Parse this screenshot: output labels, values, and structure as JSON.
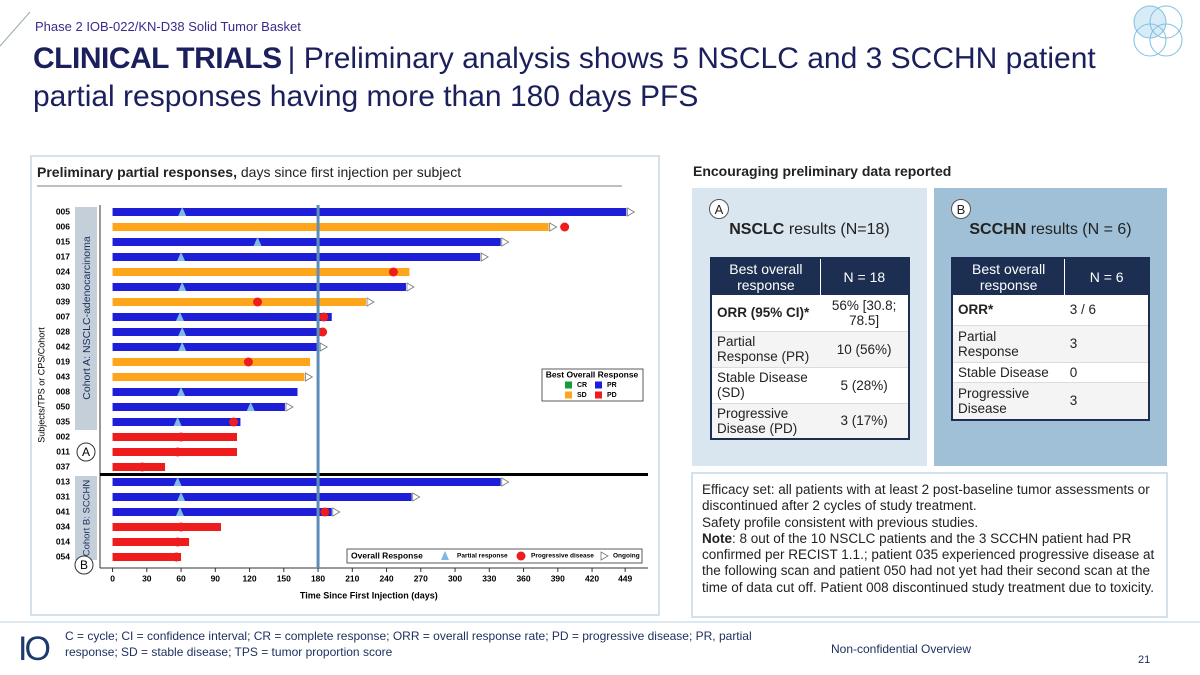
{
  "header": {
    "subtitle": "Phase 2  IOB-022/KN-D38 Solid Tumor Basket",
    "title_bold": "CLINICAL TRIALS",
    "title_rest": "| Preliminary analysis shows 5 NSCLC and 3 SCCHN patient partial responses having more than 180 days PFS"
  },
  "left_panel": {
    "heading_bold": "Preliminary partial responses,",
    "heading_rest": "days since first injection per subject"
  },
  "chart_data": {
    "type": "swimmer",
    "y_label": "Subjects/TPS or CPS/Cohort",
    "x_label": "Time Since First Injection (days)",
    "categories": [
      "005",
      "006",
      "015",
      "017",
      "024",
      "030",
      "039",
      "007",
      "028",
      "042",
      "019",
      "043",
      "008",
      "050",
      "035",
      "002",
      "011",
      "037",
      "013",
      "031",
      "041",
      "034",
      "014",
      "054"
    ],
    "values": [
      450,
      382,
      340,
      322,
      260,
      257,
      222,
      192,
      184,
      181,
      173,
      168,
      162,
      151,
      112,
      109,
      109,
      46,
      340,
      262,
      192,
      95,
      67,
      60
    ],
    "bar_colors": [
      "#1e1ed8",
      "#ffa51c",
      "#1e1ed8",
      "#1e1ed8",
      "#ffa51c",
      "#1e1ed8",
      "#ffa51c",
      "#1e1ed8",
      "#1e1ed8",
      "#1e1ed8",
      "#ffa51c",
      "#ffa51c",
      "#1e1ed8",
      "#1e1ed8",
      "#1e1ed8",
      "#ee1c1c",
      "#ee1c1c",
      "#ee1c1c",
      "#1e1ed8",
      "#1e1ed8",
      "#1e1ed8",
      "#ee1c1c",
      "#ee1c1c",
      "#ee1c1c"
    ],
    "pr_days": [
      61,
      null,
      127,
      60,
      null,
      61,
      null,
      59,
      61,
      61,
      null,
      null,
      60,
      121,
      57,
      null,
      null,
      null,
      57,
      60,
      59,
      null,
      null,
      null
    ],
    "pd_days": [
      null,
      396,
      null,
      null,
      246,
      null,
      127,
      185,
      184,
      null,
      119,
      null,
      null,
      null,
      106,
      60,
      57,
      26,
      null,
      null,
      186,
      60,
      57,
      56
    ],
    "ongoing": [
      true,
      true,
      true,
      true,
      false,
      true,
      true,
      false,
      false,
      true,
      false,
      true,
      false,
      true,
      false,
      false,
      false,
      false,
      true,
      true,
      true,
      false,
      false,
      false
    ],
    "pr_color": "#7db9e2",
    "pd_color": "#ee1c1c",
    "reference_line": 180,
    "xlim": [
      -11,
      469
    ],
    "xticks": [
      0,
      30,
      60,
      90,
      120,
      150,
      180,
      210,
      240,
      270,
      300,
      330,
      360,
      390,
      420,
      449
    ],
    "cohorts": [
      {
        "label": "Cohort A: NSCLC-adenocarcinoma",
        "marker": "A"
      },
      {
        "label": "Cohort B: SCCHN",
        "marker": "B"
      }
    ],
    "legend": {
      "title": "Best Overall Response",
      "items": [
        {
          "name": "CR",
          "color": "#1a9b3a"
        },
        {
          "name": "PR",
          "color": "#1e1ed8"
        },
        {
          "name": "SD",
          "color": "#ffa51c"
        },
        {
          "name": "PD",
          "color": "#ee1c1c"
        }
      ]
    },
    "marker_legend": {
      "title": "Overall Response",
      "items": [
        "Partial response",
        "Progressive disease",
        "Ongoing"
      ]
    }
  },
  "right_panel": {
    "heading": "Encouraging preliminary data reported",
    "panels": [
      {
        "marker": "A",
        "title_bold": "NSCLC",
        "title_rest": "results (N=18)",
        "header": [
          "Best overall response",
          "N = 18"
        ],
        "rows": [
          [
            "ORR (95% CI)*",
            "56% [30.8; 78.5]"
          ],
          [
            "Partial Response (PR)",
            "10 (56%)"
          ],
          [
            "Stable Disease (SD)",
            "5 (28%)"
          ],
          [
            "Progressive Disease (PD)",
            "3 (17%)"
          ]
        ]
      },
      {
        "marker": "B",
        "title_bold": "SCCHN",
        "title_rest": "results (N = 6)",
        "header": [
          "Best overall response",
          "N = 6"
        ],
        "rows": [
          [
            "ORR*",
            "3 / 6"
          ],
          [
            "Partial Response",
            "3"
          ],
          [
            "Stable Disease",
            "0"
          ],
          [
            "Progressive Disease",
            "3"
          ]
        ]
      }
    ]
  },
  "notes": {
    "lines": [
      "Efficacy set: all patients with at least 2 post-baseline tumor assessments or discontinued after 2 cycles of study treatment.",
      "Safety profile consistent with previous studies."
    ],
    "note_label": "Note",
    "note_text": ": 8 out of the 10 NSCLC patients and the 3 SCCHN patient had PR confirmed per RECIST 1.1.; patient 035 experienced progressive disease at the following scan and patient 050 had not yet had their second scan at the time of data cut off. Patient 008 discontinued study treatment due to toxicity."
  },
  "footer": {
    "logo": "IO",
    "footnote": "C = cycle; CI = confidence interval; CR = complete response; ORR = overall response rate; PD = progressive disease; PR, partial response; SD = stable disease; TPS = tumor proportion score",
    "label": "Non-confidential Overview",
    "page": 21
  }
}
